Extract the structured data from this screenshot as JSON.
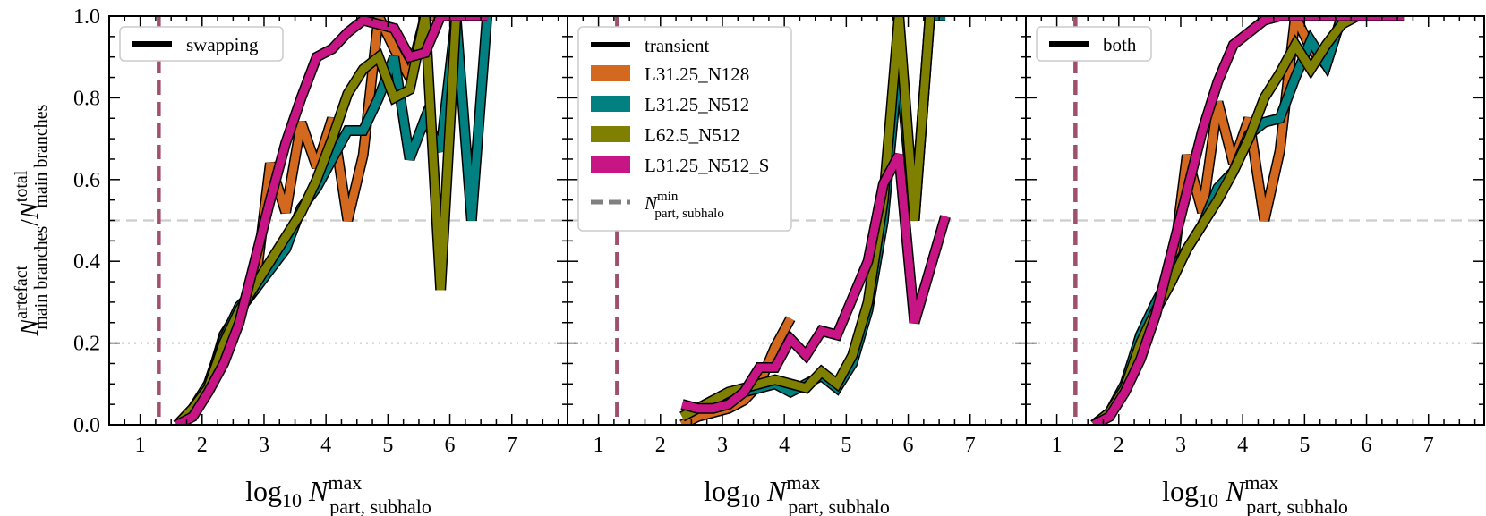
{
  "chart_data": [
    {
      "type": "line",
      "panel": "left",
      "legend_title": "swapping",
      "xlabel": "log10 N^max_part,subhalo",
      "ylabel": "N^artefact_main branches / N^total_main branches",
      "xlim": [
        0.5,
        7.9
      ],
      "ylim": [
        0.0,
        1.0
      ],
      "x_ticks": [
        "1",
        "2",
        "3",
        "4",
        "5",
        "6",
        "7"
      ],
      "y_ticks": [
        "0.0",
        "0.2",
        "0.4",
        "0.6",
        "0.8",
        "1.0"
      ],
      "hlines": [
        0.5,
        0.2
      ],
      "vline_x": 1.3,
      "series": [
        {
          "name": "L31.25_N128",
          "color": "#d2691e",
          "x": [
            1.6,
            1.85,
            2.1,
            2.35,
            2.6,
            2.85,
            3.1,
            3.35,
            3.6,
            3.85,
            4.1,
            4.35,
            4.6,
            4.85,
            5.1,
            5.35,
            5.6,
            5.85,
            6.1,
            6.35,
            6.6
          ],
          "y": [
            0.0,
            0.04,
            0.09,
            0.22,
            0.28,
            0.33,
            0.64,
            0.52,
            0.74,
            0.63,
            0.75,
            0.5,
            0.66,
            1.0,
            0.92,
            0.85,
            1.0,
            1.0,
            1.0,
            1.0,
            1.0
          ]
        },
        {
          "name": "L31.25_N512",
          "color": "#008080",
          "x": [
            1.6,
            1.85,
            2.1,
            2.35,
            2.6,
            2.85,
            3.1,
            3.35,
            3.6,
            3.85,
            4.1,
            4.35,
            4.6,
            4.85,
            5.1,
            5.35,
            5.6,
            5.85,
            6.1,
            6.35,
            6.6
          ],
          "y": [
            0.0,
            0.04,
            0.1,
            0.21,
            0.29,
            0.33,
            0.38,
            0.43,
            0.53,
            0.58,
            0.65,
            0.72,
            0.72,
            0.8,
            0.9,
            0.65,
            0.75,
            0.67,
            1.0,
            0.5,
            1.0
          ]
        },
        {
          "name": "L62.5_N512",
          "color": "#808000",
          "x": [
            1.6,
            1.85,
            2.1,
            2.35,
            2.6,
            2.85,
            3.1,
            3.35,
            3.6,
            3.85,
            4.1,
            4.35,
            4.6,
            4.85,
            5.1,
            5.35,
            5.6,
            5.85,
            6.1,
            6.35
          ],
          "y": [
            0.0,
            0.04,
            0.09,
            0.2,
            0.28,
            0.34,
            0.4,
            0.46,
            0.52,
            0.6,
            0.7,
            0.81,
            0.87,
            0.9,
            0.8,
            0.82,
            1.0,
            0.33,
            1.0,
            1.0
          ]
        },
        {
          "name": "L31.25_N512_S",
          "color": "#c71585",
          "x": [
            1.6,
            1.85,
            2.1,
            2.35,
            2.6,
            2.85,
            3.1,
            3.35,
            3.6,
            3.85,
            4.1,
            4.35,
            4.6,
            4.85,
            5.1,
            5.35,
            5.6,
            5.85,
            6.1,
            6.35,
            6.6
          ],
          "y": [
            0.0,
            0.02,
            0.08,
            0.15,
            0.25,
            0.4,
            0.55,
            0.69,
            0.8,
            0.9,
            0.92,
            0.96,
            0.99,
            0.98,
            0.97,
            0.9,
            0.91,
            1.0,
            1.0,
            1.0,
            1.0
          ]
        }
      ]
    },
    {
      "type": "line",
      "panel": "middle",
      "legend_title": "transient",
      "xlabel": "log10 N^max_part,subhalo",
      "xlim": [
        0.5,
        7.9
      ],
      "ylim": [
        0.0,
        1.0
      ],
      "x_ticks": [
        "1",
        "2",
        "3",
        "4",
        "5",
        "6",
        "7"
      ],
      "hlines": [
        0.5,
        0.2
      ],
      "vline_x": 1.3,
      "series": [
        {
          "name": "L31.25_N128",
          "color": "#d2691e",
          "x": [
            2.35,
            2.6,
            2.85,
            3.1,
            3.35,
            3.6,
            3.85,
            4.1
          ],
          "y": [
            0.0,
            0.02,
            0.03,
            0.04,
            0.06,
            0.1,
            0.19,
            0.26
          ]
        },
        {
          "name": "L31.25_N512",
          "color": "#008080",
          "x": [
            2.35,
            2.6,
            2.85,
            3.1,
            3.35,
            3.6,
            3.85,
            4.1,
            4.35,
            4.6,
            4.85,
            5.1,
            5.35,
            5.6,
            5.85,
            6.1,
            6.35,
            6.6
          ],
          "y": [
            0.02,
            0.04,
            0.06,
            0.07,
            0.08,
            0.09,
            0.1,
            0.08,
            0.1,
            0.12,
            0.09,
            0.15,
            0.28,
            0.5,
            0.9,
            0.5,
            1.0,
            1.0
          ]
        },
        {
          "name": "L62.5_N512",
          "color": "#808000",
          "x": [
            2.35,
            2.6,
            2.85,
            3.1,
            3.35,
            3.6,
            3.85,
            4.1,
            4.35,
            4.6,
            4.85,
            5.1,
            5.35,
            5.6,
            5.85,
            6.1,
            6.35
          ],
          "y": [
            0.02,
            0.04,
            0.06,
            0.08,
            0.09,
            0.1,
            0.11,
            0.1,
            0.09,
            0.13,
            0.1,
            0.17,
            0.3,
            0.55,
            1.0,
            0.5,
            1.0
          ]
        },
        {
          "name": "L31.25_N512_S",
          "color": "#c71585",
          "x": [
            2.35,
            2.6,
            2.85,
            3.1,
            3.35,
            3.6,
            3.85,
            4.1,
            4.35,
            4.6,
            4.85,
            5.1,
            5.35,
            5.6,
            5.85,
            6.1,
            6.35,
            6.6
          ],
          "y": [
            0.05,
            0.04,
            0.04,
            0.05,
            0.08,
            0.14,
            0.14,
            0.21,
            0.17,
            0.23,
            0.22,
            0.31,
            0.4,
            0.59,
            0.66,
            0.25,
            0.38,
            0.51
          ]
        }
      ]
    },
    {
      "type": "line",
      "panel": "right",
      "legend_title": "both",
      "xlabel": "log10 N^max_part,subhalo",
      "xlim": [
        0.5,
        7.9
      ],
      "ylim": [
        0.0,
        1.0
      ],
      "x_ticks": [
        "1",
        "2",
        "3",
        "4",
        "5",
        "6",
        "7"
      ],
      "hlines": [
        0.5,
        0.2
      ],
      "vline_x": 1.3,
      "series": [
        {
          "name": "L31.25_N128",
          "color": "#d2691e",
          "x": [
            1.6,
            1.85,
            2.1,
            2.35,
            2.6,
            2.85,
            3.1,
            3.35,
            3.6,
            3.85,
            4.1,
            4.35,
            4.6,
            4.85,
            5.1,
            5.35,
            5.6,
            5.85,
            6.1,
            6.35,
            6.6
          ],
          "y": [
            0.0,
            0.03,
            0.09,
            0.22,
            0.28,
            0.36,
            0.66,
            0.52,
            0.79,
            0.64,
            0.75,
            0.5,
            0.67,
            1.0,
            0.92,
            0.88,
            1.0,
            1.0,
            1.0,
            1.0,
            1.0
          ]
        },
        {
          "name": "L31.25_N512",
          "color": "#008080",
          "x": [
            1.6,
            1.85,
            2.1,
            2.35,
            2.6,
            2.85,
            3.1,
            3.35,
            3.6,
            3.85,
            4.1,
            4.35,
            4.6,
            4.85,
            5.1,
            5.35,
            5.6,
            5.85,
            6.1,
            6.35,
            6.6
          ],
          "y": [
            0.0,
            0.03,
            0.1,
            0.22,
            0.3,
            0.37,
            0.43,
            0.49,
            0.58,
            0.62,
            0.71,
            0.74,
            0.75,
            0.85,
            0.94,
            0.88,
            1.0,
            1.0,
            1.0,
            1.0,
            1.0
          ]
        },
        {
          "name": "L62.5_N512",
          "color": "#808000",
          "x": [
            1.6,
            1.85,
            2.1,
            2.35,
            2.6,
            2.85,
            3.1,
            3.35,
            3.6,
            3.85,
            4.1,
            4.35,
            4.6,
            4.85,
            5.1,
            5.35,
            5.6,
            5.85,
            6.1,
            6.35
          ],
          "y": [
            0.0,
            0.03,
            0.09,
            0.2,
            0.28,
            0.35,
            0.43,
            0.49,
            0.55,
            0.62,
            0.7,
            0.8,
            0.86,
            0.93,
            0.87,
            0.93,
            0.98,
            1.0,
            1.0,
            1.0
          ]
        },
        {
          "name": "L31.25_N512_S",
          "color": "#c71585",
          "x": [
            1.6,
            1.85,
            2.1,
            2.35,
            2.6,
            2.85,
            3.1,
            3.35,
            3.6,
            3.85,
            4.1,
            4.35,
            4.6,
            4.85,
            5.1,
            5.35,
            5.6,
            5.85,
            6.1,
            6.35,
            6.6
          ],
          "y": [
            0.0,
            0.02,
            0.08,
            0.16,
            0.27,
            0.42,
            0.57,
            0.72,
            0.84,
            0.93,
            0.96,
            0.99,
            1.0,
            1.0,
            1.0,
            1.0,
            1.0,
            1.0,
            1.0,
            1.0,
            1.0
          ]
        }
      ]
    }
  ],
  "legend": {
    "entries": [
      "L31.25_N128",
      "L31.25_N512",
      "L62.5_N512",
      "L31.25_N512_S"
    ],
    "colors": [
      "#d2691e",
      "#008080",
      "#808000",
      "#c71585"
    ],
    "threshold_label": "N^min_part,subhalo"
  },
  "styles": {
    "vline_color": "#a0506a",
    "hline_color": "#cccccc"
  }
}
